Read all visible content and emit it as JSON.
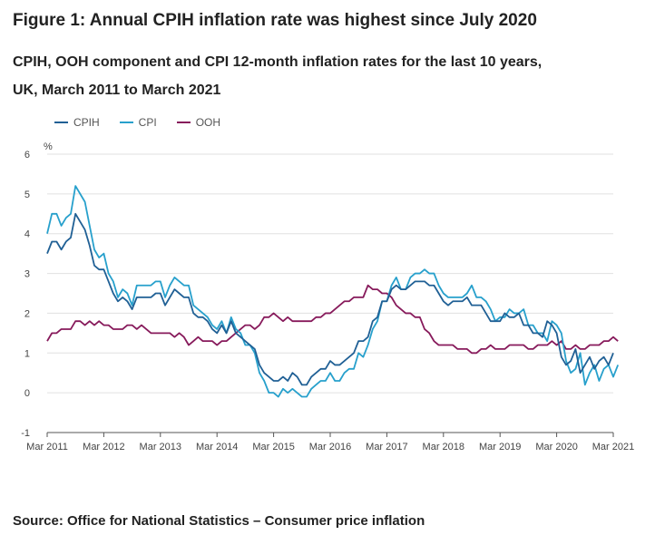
{
  "figure_title": "Figure 1: Annual CPIH inflation rate was highest since July 2020",
  "figure_subtitle": "CPIH, OOH component and CPI 12-month inflation rates for the last 10 years, UK, March 2011 to March 2021",
  "source": "Source: Office for National Statistics – Consumer price inflation",
  "colors": {
    "CPIH": "#206095",
    "CPI": "#27a0cc",
    "OOH": "#871a5b",
    "grid": "#e0e0e0",
    "axis": "#555555"
  },
  "chart_data": {
    "type": "line",
    "title": "",
    "xlabel": "",
    "ylabel": "%",
    "ylim": [
      -1,
      6
    ],
    "yticks": [
      -1,
      0,
      1,
      2,
      3,
      4,
      5,
      6
    ],
    "grid": true,
    "legend_position": "top-left",
    "x_start": "Mar 2011",
    "x_end": "Mar 2021",
    "x_ticks": [
      "Mar 2011",
      "Mar 2012",
      "Mar 2013",
      "Mar 2014",
      "Mar 2015",
      "Mar 2016",
      "Mar 2017",
      "Mar 2018",
      "Mar 2019",
      "Mar 2020",
      "Mar 2021"
    ],
    "series": [
      {
        "name": "CPIH",
        "values": [
          3.5,
          3.8,
          3.8,
          3.6,
          3.8,
          3.9,
          4.5,
          4.3,
          4.1,
          3.7,
          3.2,
          3.1,
          3.1,
          2.8,
          2.5,
          2.3,
          2.4,
          2.3,
          2.1,
          2.4,
          2.4,
          2.4,
          2.4,
          2.5,
          2.5,
          2.2,
          2.4,
          2.6,
          2.5,
          2.4,
          2.4,
          2.0,
          1.9,
          1.9,
          1.8,
          1.6,
          1.5,
          1.7,
          1.5,
          1.8,
          1.5,
          1.4,
          1.3,
          1.2,
          1.1,
          0.7,
          0.5,
          0.4,
          0.3,
          0.3,
          0.4,
          0.3,
          0.5,
          0.4,
          0.2,
          0.2,
          0.4,
          0.5,
          0.6,
          0.6,
          0.8,
          0.7,
          0.7,
          0.8,
          0.9,
          1.0,
          1.3,
          1.3,
          1.4,
          1.8,
          1.9,
          2.3,
          2.3,
          2.6,
          2.7,
          2.6,
          2.6,
          2.7,
          2.8,
          2.8,
          2.8,
          2.7,
          2.7,
          2.5,
          2.3,
          2.2,
          2.3,
          2.3,
          2.3,
          2.4,
          2.2,
          2.2,
          2.2,
          2.0,
          1.8,
          1.8,
          1.8,
          2.0,
          1.9,
          1.9,
          2.0,
          1.7,
          1.7,
          1.5,
          1.5,
          1.4,
          1.8,
          1.7,
          1.5,
          0.9,
          0.7,
          0.8,
          1.1,
          0.5,
          0.7,
          0.9,
          0.6,
          0.8,
          0.9,
          0.7,
          1.0
        ]
      },
      {
        "name": "CPI",
        "values": [
          4.0,
          4.5,
          4.5,
          4.2,
          4.4,
          4.5,
          5.2,
          5.0,
          4.8,
          4.2,
          3.6,
          3.4,
          3.5,
          3.0,
          2.8,
          2.4,
          2.6,
          2.5,
          2.2,
          2.7,
          2.7,
          2.7,
          2.7,
          2.8,
          2.8,
          2.4,
          2.7,
          2.9,
          2.8,
          2.7,
          2.7,
          2.2,
          2.1,
          2.0,
          1.9,
          1.7,
          1.6,
          1.8,
          1.5,
          1.9,
          1.6,
          1.5,
          1.2,
          1.2,
          1.0,
          0.5,
          0.3,
          0.0,
          0.0,
          -0.1,
          0.1,
          0.0,
          0.1,
          0.0,
          -0.1,
          -0.1,
          0.1,
          0.2,
          0.3,
          0.3,
          0.5,
          0.3,
          0.3,
          0.5,
          0.6,
          0.6,
          1.0,
          0.9,
          1.2,
          1.6,
          1.8,
          2.3,
          2.3,
          2.7,
          2.9,
          2.6,
          2.6,
          2.9,
          3.0,
          3.0,
          3.1,
          3.0,
          3.0,
          2.7,
          2.5,
          2.4,
          2.4,
          2.4,
          2.4,
          2.5,
          2.7,
          2.4,
          2.4,
          2.3,
          2.1,
          1.8,
          1.9,
          1.9,
          2.1,
          2.0,
          2.0,
          2.1,
          1.7,
          1.7,
          1.5,
          1.5,
          1.3,
          1.8,
          1.7,
          1.5,
          0.8,
          0.5,
          0.6,
          1.0,
          0.2,
          0.5,
          0.7,
          0.3,
          0.6,
          0.7,
          0.4,
          0.7
        ]
      },
      {
        "name": "OOH",
        "values": [
          1.3,
          1.5,
          1.5,
          1.6,
          1.6,
          1.6,
          1.8,
          1.8,
          1.7,
          1.8,
          1.7,
          1.8,
          1.7,
          1.7,
          1.6,
          1.6,
          1.6,
          1.7,
          1.7,
          1.6,
          1.7,
          1.6,
          1.5,
          1.5,
          1.5,
          1.5,
          1.5,
          1.4,
          1.5,
          1.4,
          1.2,
          1.3,
          1.4,
          1.3,
          1.3,
          1.3,
          1.2,
          1.3,
          1.3,
          1.4,
          1.5,
          1.6,
          1.7,
          1.7,
          1.6,
          1.7,
          1.9,
          1.9,
          2.0,
          1.9,
          1.8,
          1.9,
          1.8,
          1.8,
          1.8,
          1.8,
          1.8,
          1.9,
          1.9,
          2.0,
          2.0,
          2.1,
          2.2,
          2.3,
          2.3,
          2.4,
          2.4,
          2.4,
          2.7,
          2.6,
          2.6,
          2.5,
          2.5,
          2.4,
          2.2,
          2.1,
          2.0,
          2.0,
          1.9,
          1.9,
          1.6,
          1.5,
          1.3,
          1.2,
          1.2,
          1.2,
          1.2,
          1.1,
          1.1,
          1.1,
          1.0,
          1.0,
          1.1,
          1.1,
          1.2,
          1.1,
          1.1,
          1.1,
          1.2,
          1.2,
          1.2,
          1.2,
          1.1,
          1.1,
          1.2,
          1.2,
          1.2,
          1.3,
          1.2,
          1.3,
          1.1,
          1.1,
          1.2,
          1.1,
          1.1,
          1.2,
          1.2,
          1.2,
          1.3,
          1.3,
          1.4,
          1.3
        ]
      }
    ]
  }
}
